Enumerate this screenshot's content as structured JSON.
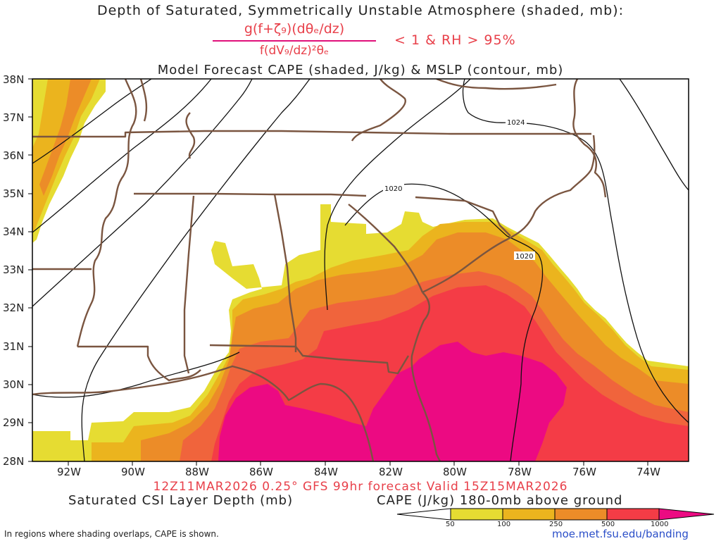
{
  "header": {
    "title": "Depth of Saturated, Symmetrically Unstable Atmosphere (shaded, mb):",
    "numerator": "g(f+ζ₉)(dθₑ/dz)",
    "denominator": "f(dV₉/dz)²θₑ",
    "condition": "< 1 & RH > 95%",
    "subtitle": "Model Forecast CAPE (shaded, J/kg) & MSLP (contour, mb)"
  },
  "map": {
    "lat_labels": [
      "38N",
      "37N",
      "36N",
      "35N",
      "34N",
      "33N",
      "32N",
      "31N",
      "30N",
      "29N",
      "28N"
    ],
    "lon_labels": [
      "92W",
      "90W",
      "88W",
      "86W",
      "84W",
      "82W",
      "80W",
      "78W",
      "76W",
      "74W"
    ],
    "isobars": [
      {
        "label": "1024"
      },
      {
        "label": "1020"
      },
      {
        "label": "1020"
      }
    ]
  },
  "footer": {
    "valid_line": "12Z11MAR2026 0.25° GFS 99hr forecast Valid 15Z15MAR2026",
    "left_legend": "Saturated CSI Layer Depth (mb)",
    "right_legend": "CAPE (J/kg) 180-0mb above ground",
    "note": "In regions where shading overlaps, CAPE is shown.",
    "credit": "moe.met.fsu.edu/banding"
  },
  "colorbar": {
    "labels": [
      "50",
      "100",
      "250",
      "500",
      "1000"
    ],
    "colors": [
      "#e6dc32",
      "#ebb41e",
      "#ec8c28",
      "#f0643c",
      "#f43c46",
      "#ec0a82"
    ]
  }
}
